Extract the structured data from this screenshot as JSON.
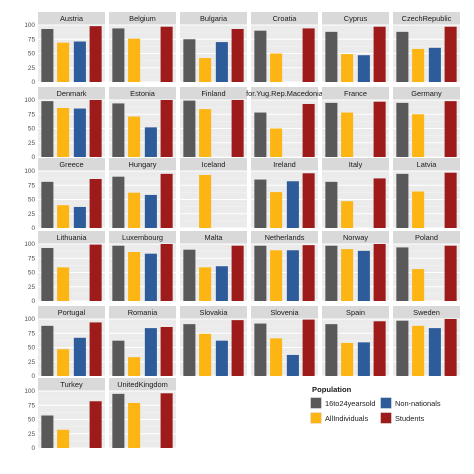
{
  "chart_data": {
    "type": "bar",
    "facet_by": "country",
    "ylim": [
      0,
      100
    ],
    "y_ticks": [
      "0",
      "25",
      "50",
      "75",
      "100"
    ],
    "grid": true,
    "legend_position": "bottom-right",
    "legend": {
      "title": "Population",
      "items": [
        {
          "key": "16to24yearsold",
          "label": "16to24yearsold",
          "color": "#595959"
        },
        {
          "key": "Non-nationals",
          "label": "Non-nationals",
          "color": "#2e5b9a"
        },
        {
          "key": "AllIndividuals",
          "label": "AllIndividuals",
          "color": "#fdb513"
        },
        {
          "key": "Students",
          "label": "Students",
          "color": "#9e1b1b"
        }
      ]
    },
    "series_order": [
      "16to24yearsold",
      "AllIndividuals",
      "Non-nationals",
      "Students"
    ],
    "colors": {
      "16to24yearsold": "#595959",
      "AllIndividuals": "#fdb513",
      "Non-nationals": "#2e5b9a",
      "Students": "#9e1b1b"
    },
    "panels": [
      {
        "name": "Austria",
        "values": [
          93,
          69,
          71,
          98
        ]
      },
      {
        "name": "Belgium",
        "values": [
          94,
          76,
          null,
          97
        ]
      },
      {
        "name": "Bulgaria",
        "values": [
          75,
          42,
          70,
          93
        ]
      },
      {
        "name": "Croatia",
        "values": [
          90,
          50,
          null,
          94
        ]
      },
      {
        "name": "Cyprus",
        "values": [
          88,
          49,
          47,
          97
        ]
      },
      {
        "name": "CzechRepublic",
        "values": [
          88,
          58,
          60,
          97
        ]
      },
      {
        "name": "Denmark",
        "values": [
          98,
          86,
          85,
          100
        ]
      },
      {
        "name": "Estonia",
        "values": [
          94,
          71,
          52,
          100
        ]
      },
      {
        "name": "Finland",
        "values": [
          99,
          84,
          null,
          100
        ]
      },
      {
        "name": "for.Yug.Rep.Macedonia",
        "values": [
          78,
          50,
          null,
          93
        ]
      },
      {
        "name": "France",
        "values": [
          95,
          78,
          null,
          97
        ]
      },
      {
        "name": "Germany",
        "values": [
          95,
          75,
          null,
          98
        ]
      },
      {
        "name": "Greece",
        "values": [
          81,
          40,
          37,
          86
        ]
      },
      {
        "name": "Hungary",
        "values": [
          90,
          62,
          58,
          95
        ]
      },
      {
        "name": "Iceland",
        "values": [
          null,
          93,
          null,
          null
        ]
      },
      {
        "name": "Ireland",
        "values": [
          85,
          63,
          82,
          96
        ]
      },
      {
        "name": "Italy",
        "values": [
          81,
          47,
          null,
          87
        ]
      },
      {
        "name": "Latvia",
        "values": [
          95,
          64,
          null,
          97
        ]
      },
      {
        "name": "Lithuania",
        "values": [
          93,
          59,
          null,
          99
        ]
      },
      {
        "name": "Luxembourg",
        "values": [
          97,
          86,
          83,
          100
        ]
      },
      {
        "name": "Malta",
        "values": [
          90,
          59,
          61,
          97
        ]
      },
      {
        "name": "Netherlands",
        "values": [
          97,
          89,
          89,
          98
        ]
      },
      {
        "name": "Norway",
        "values": [
          97,
          91,
          88,
          100
        ]
      },
      {
        "name": "Poland",
        "values": [
          94,
          56,
          null,
          97
        ]
      },
      {
        "name": "Portugal",
        "values": [
          88,
          47,
          67,
          94
        ]
      },
      {
        "name": "Romania",
        "values": [
          62,
          33,
          84,
          86
        ]
      },
      {
        "name": "Slovakia",
        "values": [
          91,
          74,
          62,
          98
        ]
      },
      {
        "name": "Slovenia",
        "values": [
          92,
          66,
          37,
          99
        ]
      },
      {
        "name": "Spain",
        "values": [
          91,
          58,
          59,
          96
        ]
      },
      {
        "name": "Sweden",
        "values": [
          97,
          88,
          84,
          100
        ]
      },
      {
        "name": "Turkey",
        "values": [
          57,
          32,
          null,
          82
        ]
      },
      {
        "name": "UnitedKingdom",
        "values": [
          95,
          79,
          null,
          96
        ]
      }
    ]
  }
}
